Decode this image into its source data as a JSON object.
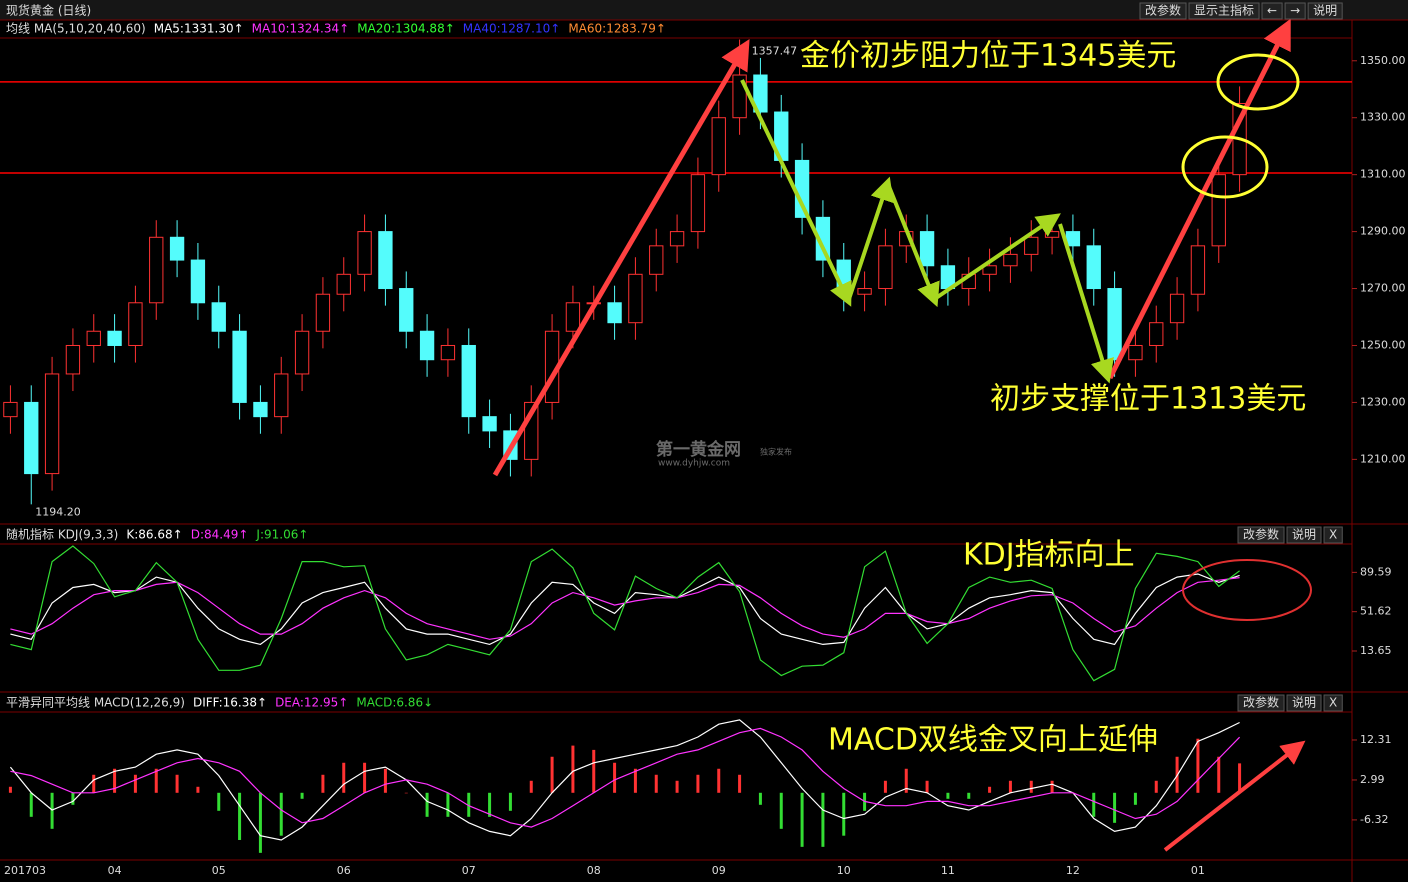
{
  "toolbar": [
    "改参数",
    "显示主指标",
    "←",
    "→",
    "说明"
  ],
  "annotations": [
    {
      "text": "金价初步阻力位于1345美元",
      "color": "#ffff33"
    },
    {
      "text": "初步支撑位于1313美元",
      "color": "#ffff33"
    },
    {
      "text": "KDJ指标向上",
      "color": "#ffff33"
    },
    {
      "text": "MACD双线金叉向上延伸",
      "color": "#ffff33"
    }
  ],
  "watermark": {
    "name": "第一黄金网",
    "url": "www.dyhjw.com",
    "badge": "独家发布"
  },
  "chart_data": [
    {
      "type": "candlestick",
      "title": "现货黄金 (日线)",
      "indicator": "均线 MA(5,10,20,40,60)",
      "ma_labels": [
        {
          "text": "MA5:1331.30↑",
          "color": "#ffffff"
        },
        {
          "text": "MA10:1324.34↑",
          "color": "#ff33ff"
        },
        {
          "text": "MA20:1304.88↑",
          "color": "#33ff33"
        },
        {
          "text": "MA40:1287.10↑",
          "color": "#3333ff"
        },
        {
          "text": "MA60:1283.79↑",
          "color": "#ff8c33"
        }
      ],
      "up_color": "#ff3232",
      "down_color": "#54fcfc",
      "open": [
        1225,
        1230,
        1205,
        1240,
        1250,
        1255,
        1250,
        1265,
        1288,
        1280,
        1265,
        1255,
        1230,
        1225,
        1240,
        1255,
        1268,
        1275,
        1290,
        1270,
        1255,
        1245,
        1250,
        1225,
        1220,
        1210,
        1230,
        1255,
        1265,
        1265,
        1258,
        1275,
        1285,
        1290,
        1310,
        1330,
        1345,
        1332,
        1315,
        1295,
        1280,
        1268,
        1270,
        1285,
        1290,
        1278,
        1270,
        1275,
        1278,
        1282,
        1288,
        1290,
        1285,
        1270,
        1245,
        1250,
        1258,
        1268,
        1285,
        1310
      ],
      "close": [
        1230,
        1205,
        1240,
        1250,
        1255,
        1250,
        1265,
        1288,
        1280,
        1265,
        1255,
        1230,
        1225,
        1240,
        1255,
        1268,
        1275,
        1290,
        1270,
        1255,
        1245,
        1250,
        1225,
        1220,
        1210,
        1230,
        1255,
        1265,
        1265,
        1258,
        1275,
        1285,
        1290,
        1310,
        1330,
        1345,
        1332,
        1315,
        1295,
        1280,
        1268,
        1270,
        1285,
        1290,
        1278,
        1270,
        1275,
        1278,
        1282,
        1288,
        1290,
        1285,
        1270,
        1245,
        1250,
        1258,
        1268,
        1285,
        1310,
        1335
      ],
      "high": [
        1236,
        1236,
        1246,
        1256,
        1261,
        1261,
        1271,
        1294,
        1294,
        1286,
        1271,
        1261,
        1236,
        1246,
        1261,
        1274,
        1281,
        1296,
        1296,
        1276,
        1261,
        1256,
        1256,
        1231,
        1226,
        1236,
        1261,
        1271,
        1271,
        1271,
        1281,
        1291,
        1296,
        1316,
        1336,
        1357.47,
        1351,
        1338,
        1321,
        1301,
        1286,
        1276,
        1291,
        1296,
        1296,
        1284,
        1281,
        1284,
        1288,
        1294,
        1296,
        1296,
        1291,
        1276,
        1256,
        1264,
        1274,
        1291,
        1316,
        1341
      ],
      "low": [
        1219,
        1194.2,
        1199,
        1234,
        1244,
        1244,
        1244,
        1259,
        1274,
        1259,
        1249,
        1224,
        1219,
        1219,
        1234,
        1249,
        1262,
        1269,
        1264,
        1249,
        1239,
        1239,
        1219,
        1214,
        1204,
        1204,
        1224,
        1249,
        1259,
        1252,
        1252,
        1269,
        1279,
        1284,
        1304,
        1324,
        1326,
        1309,
        1289,
        1274,
        1262,
        1262,
        1264,
        1279,
        1272,
        1264,
        1264,
        1269,
        1272,
        1276,
        1282,
        1279,
        1264,
        1239,
        1239,
        1244,
        1252,
        1262,
        1279,
        1304
      ],
      "extreme_labels": {
        "high": "1357.47",
        "low": "1194.20"
      },
      "reference_lines": [
        {
          "value": 1342.6,
          "color": "#ff0000"
        },
        {
          "value": 1310.6,
          "color": "#ff0000"
        }
      ],
      "ylim": [
        1188,
        1358
      ],
      "yticks": [
        {
          "value": 1210,
          "label": "1210.00"
        },
        {
          "value": 1230,
          "label": "1230.00"
        },
        {
          "value": 1250,
          "label": "1250.00"
        },
        {
          "value": 1270,
          "label": "1270.00"
        },
        {
          "value": 1290,
          "label": "1290.00"
        },
        {
          "value": 1310,
          "label": "1310.00"
        },
        {
          "value": 1330,
          "label": "1330.00"
        },
        {
          "value": 1350,
          "label": "1350.00"
        }
      ]
    },
    {
      "type": "line",
      "indicator": "随机指标 KDJ(9,3,3)",
      "buttons": [
        "改参数",
        "说明",
        "X"
      ],
      "series": [
        {
          "name": "K",
          "label": "K:86.68↑",
          "color": "#ffffff",
          "values": [
            30,
            25,
            60,
            75,
            78,
            70,
            72,
            85,
            80,
            55,
            35,
            25,
            20,
            35,
            60,
            70,
            75,
            80,
            55,
            35,
            30,
            30,
            25,
            20,
            30,
            60,
            80,
            78,
            60,
            50,
            70,
            68,
            65,
            75,
            85,
            75,
            45,
            30,
            25,
            20,
            22,
            55,
            75,
            50,
            35,
            40,
            55,
            65,
            68,
            72,
            70,
            45,
            25,
            20,
            50,
            75,
            85,
            88,
            80,
            86.68
          ]
        },
        {
          "name": "D",
          "label": "D:84.49↑",
          "color": "#ff33ff",
          "values": [
            35,
            30,
            40,
            55,
            68,
            72,
            72,
            78,
            80,
            70,
            55,
            40,
            30,
            30,
            40,
            55,
            65,
            72,
            65,
            50,
            40,
            35,
            30,
            25,
            28,
            40,
            60,
            70,
            65,
            58,
            62,
            65,
            65,
            70,
            78,
            77,
            65,
            50,
            38,
            30,
            27,
            35,
            50,
            50,
            42,
            40,
            45,
            55,
            62,
            67,
            68,
            60,
            45,
            32,
            38,
            55,
            70,
            80,
            82,
            84.49
          ]
        },
        {
          "name": "J",
          "label": "J:91.06↑",
          "color": "#33dd33",
          "values": [
            20,
            15,
            100,
            115,
            98,
            66,
            72,
            99,
            80,
            25,
            -5,
            -5,
            0,
            45,
            100,
            100,
            95,
            96,
            35,
            5,
            10,
            20,
            15,
            10,
            34,
            100,
            112,
            94,
            50,
            34,
            86,
            74,
            65,
            85,
            99,
            71,
            5,
            -10,
            -1,
            0,
            12,
            95,
            110,
            50,
            21,
            40,
            75,
            85,
            80,
            82,
            74,
            15,
            -15,
            -4,
            74,
            108,
            105,
            100,
            76,
            91.06
          ]
        }
      ],
      "ylim": [
        -24,
        116
      ],
      "yticks": [
        13.65,
        51.62,
        89.59
      ]
    },
    {
      "type": "macd",
      "indicator": "平滑异同平均线 MACD(12,26,9)",
      "buttons": [
        "改参数",
        "说明",
        "X"
      ],
      "categories": [
        "201703",
        null,
        null,
        null,
        null,
        "04",
        null,
        null,
        null,
        null,
        "05",
        null,
        null,
        null,
        null,
        null,
        "06",
        null,
        null,
        null,
        null,
        null,
        "07",
        null,
        null,
        null,
        null,
        null,
        "08",
        null,
        null,
        null,
        null,
        null,
        "09",
        null,
        null,
        null,
        null,
        null,
        "10",
        null,
        null,
        null,
        null,
        "11",
        null,
        null,
        null,
        null,
        null,
        "12",
        null,
        null,
        null,
        null,
        null,
        "01",
        null,
        null
      ],
      "series": [
        {
          "name": "DIFF",
          "label": "DIFF:16.38↑",
          "color": "#ffffff",
          "values": [
            6,
            0,
            -4,
            -2,
            3,
            5,
            6,
            9,
            10,
            9,
            4,
            -3,
            -10,
            -11,
            -8,
            -3,
            2,
            5,
            6,
            3,
            -2,
            -4,
            -7,
            -9,
            -10,
            -6,
            0,
            5,
            7,
            8,
            9,
            10,
            11,
            13,
            16,
            17,
            13,
            7,
            1,
            -4,
            -6,
            -5,
            -1,
            1,
            0,
            -3,
            -4,
            -2,
            0,
            1,
            2,
            0,
            -6,
            -9,
            -8,
            -3,
            4,
            12,
            14,
            16.38
          ]
        },
        {
          "name": "DEA",
          "label": "DEA:12.95↑",
          "color": "#ff33ff",
          "values": [
            5,
            4,
            2,
            0,
            0,
            1,
            3,
            5,
            7,
            8,
            7,
            5,
            0,
            -4,
            -7,
            -6,
            -3,
            0,
            2,
            3,
            2,
            0,
            -3,
            -5,
            -7,
            -8,
            -6,
            -3,
            0,
            3,
            5,
            7,
            9,
            10,
            12,
            14,
            15,
            13,
            10,
            5,
            1,
            -2,
            -3,
            -3,
            -2,
            -2,
            -3,
            -3,
            -2,
            -1,
            0,
            0,
            -2,
            -4,
            -6,
            -5,
            -2,
            3,
            8,
            12.95
          ]
        },
        {
          "name": "MACD",
          "label": "MACD:6.86↓",
          "color": "#33dd33",
          "up_color": "#ff3232",
          "down_color": "#33dd33",
          "bars": true,
          "values": [
            1.4,
            -5.6,
            -8.4,
            -2.8,
            4.2,
            5.6,
            4.2,
            5.6,
            4.2,
            1.4,
            -4.2,
            -11,
            -14,
            -10,
            -1.4,
            4.2,
            7,
            7,
            5.6,
            0,
            -5.6,
            -5.6,
            -5.6,
            -5.6,
            -4.2,
            2.8,
            8.4,
            11,
            10,
            7,
            5.6,
            4.2,
            2.8,
            4.2,
            5.6,
            4.2,
            -2.8,
            -8.4,
            -12.6,
            -12.6,
            -10,
            -4.2,
            2.8,
            5.6,
            2.8,
            -1.4,
            -1.4,
            1.4,
            2.8,
            2.8,
            2.8,
            0,
            -5.6,
            -7,
            -2.8,
            2.8,
            8.4,
            12.6,
            8.4,
            6.86
          ]
        }
      ],
      "ylim": [
        -15.2,
        18.6
      ],
      "yticks": [
        -6.32,
        2.99,
        12.31
      ]
    }
  ]
}
